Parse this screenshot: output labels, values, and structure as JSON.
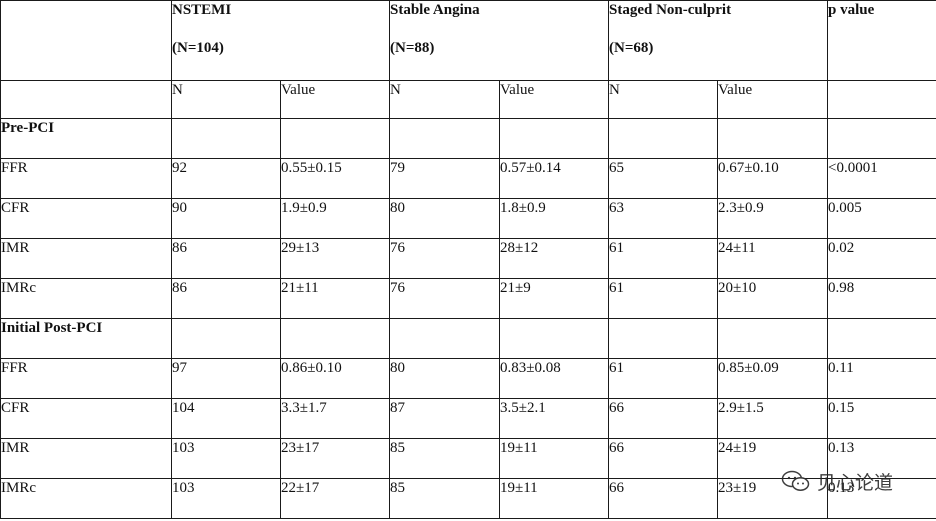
{
  "header": {
    "groups": [
      {
        "name": "NSTEMI",
        "n": "(N=104)"
      },
      {
        "name": "Stable Angina",
        "n": "(N=88)"
      },
      {
        "name": "Staged Non-culprit",
        "n": "(N=68)"
      }
    ],
    "pvalue_label": "p value",
    "sub_n": "N",
    "sub_value": "Value"
  },
  "sections": [
    {
      "label": "Pre-PCI",
      "rows": [
        {
          "metric": "FFR",
          "n1": "92",
          "v1": "0.55±0.15",
          "n2": "79",
          "v2": "0.57±0.14",
          "n3": "65",
          "v3": "0.67±0.10",
          "p": "<0.0001"
        },
        {
          "metric": "CFR",
          "n1": "90",
          "v1": "1.9±0.9",
          "n2": "80",
          "v2": "1.8±0.9",
          "n3": "63",
          "v3": "2.3±0.9",
          "p": "0.005"
        },
        {
          "metric": "IMR",
          "n1": "86",
          "v1": "29±13",
          "n2": "76",
          "v2": "28±12",
          "n3": "61",
          "v3": "24±11",
          "p": "0.02"
        },
        {
          "metric": "IMRc",
          "n1": "86",
          "v1": "21±11",
          "n2": "76",
          "v2": "21±9",
          "n3": "61",
          "v3": "20±10",
          "p": "0.98"
        }
      ]
    },
    {
      "label": "Initial Post-PCI",
      "rows": [
        {
          "metric": "FFR",
          "n1": "97",
          "v1": "0.86±0.10",
          "n2": "80",
          "v2": "0.83±0.08",
          "n3": "61",
          "v3": "0.85±0.09",
          "p": "0.11"
        },
        {
          "metric": "CFR",
          "n1": "104",
          "v1": "3.3±1.7",
          "n2": "87",
          "v2": "3.5±2.1",
          "n3": "66",
          "v3": "2.9±1.5",
          "p": "0.15"
        },
        {
          "metric": "IMR",
          "n1": "103",
          "v1": "23±17",
          "n2": "85",
          "v2": "19±11",
          "n3": "66",
          "v3": "24±19",
          "p": "0.13"
        },
        {
          "metric": "IMRc",
          "n1": "103",
          "v1": "22±17",
          "n2": "85",
          "v2": "19±11",
          "n3": "66",
          "v3": "23±19",
          "p": "0.13"
        }
      ]
    }
  ],
  "watermark": {
    "text": "见心论道",
    "icon": "wechat-icon"
  }
}
